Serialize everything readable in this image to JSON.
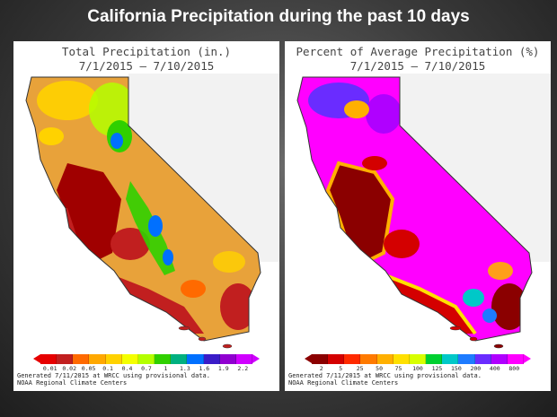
{
  "slide": {
    "title": "California Precipitation during the past 10 days"
  },
  "left_map": {
    "title_line1": "Total Precipitation (in.)",
    "title_line2": "7/1/2015 – 7/10/2015",
    "legend_colors": [
      "#e60000",
      "#c11f1f",
      "#ff6a00",
      "#ffa800",
      "#ffd200",
      "#f4ff00",
      "#b4ff00",
      "#30d000",
      "#00b080",
      "#0070ff",
      "#3a1cc8",
      "#9000d0",
      "#d000ff"
    ],
    "legend_ticks": [
      "0.01",
      "0.02",
      "0.05",
      "0.1",
      "0.4",
      "0.7",
      "1",
      "1.3",
      "1.6",
      "1.9",
      "2.2"
    ],
    "footer_line1": "Generated 7/11/2015 at WRCC using provisional data.",
    "footer_line2": "NOAA Regional Climate Centers"
  },
  "right_map": {
    "title_line1": "Percent of Average Precipitation (%)",
    "title_line2": "7/1/2015 – 7/10/2015",
    "legend_colors": [
      "#8b0000",
      "#d40000",
      "#ff2a00",
      "#ff7a00",
      "#ffb000",
      "#ffe000",
      "#d8ff00",
      "#00d030",
      "#00c8c8",
      "#1e7bff",
      "#6a2cff",
      "#b000ff",
      "#ff00ff"
    ],
    "legend_ticks": [
      "2",
      "5",
      "25",
      "50",
      "75",
      "100",
      "125",
      "150",
      "200",
      "400",
      "800"
    ],
    "footer_line1": "Generated 7/11/2015 at WRCC using provisional data.",
    "footer_line2": "NOAA Regional Climate Centers"
  }
}
